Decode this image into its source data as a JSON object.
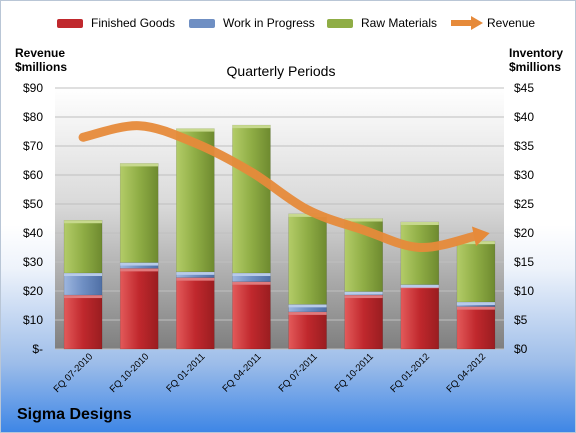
{
  "chart_data": {
    "type": "bar",
    "stacked": true,
    "categories": [
      "FQ 07-2010",
      "FQ 10-2010",
      "FQ 01-2011",
      "FQ 04-2011",
      "FQ 07-2011",
      "FQ 10-2011",
      "FQ 01-2012",
      "FQ 04-2012"
    ],
    "series": [
      {
        "name": "Finished Goods",
        "axis": "right",
        "color": "#c0282d",
        "values": [
          9.3,
          13.9,
          12.3,
          11.6,
          6.4,
          9.3,
          11.0,
          7.3
        ]
      },
      {
        "name": "Work in Progress",
        "axis": "right",
        "color": "#6f8fc3",
        "values": [
          3.8,
          1.0,
          1.0,
          1.5,
          1.3,
          0.6,
          0.1,
          0.8
        ]
      },
      {
        "name": "Raw Materials",
        "axis": "right",
        "color": "#8fad45",
        "values": [
          9.1,
          17.1,
          24.7,
          25.5,
          15.6,
          12.6,
          10.8,
          10.5
        ]
      },
      {
        "name": "Revenue",
        "type": "line",
        "axis": "left",
        "color": "#e68a3a",
        "values": [
          73,
          77,
          71,
          61,
          48,
          41,
          35,
          39
        ]
      }
    ],
    "title": "Quarterly Periods",
    "ylabel_left": "Revenue $millions",
    "ylabel_right": "Inventory $millions",
    "ylim_left": [
      0,
      90
    ],
    "ylim_right": [
      0,
      45
    ],
    "yticks_left": [
      "$-",
      "$10",
      "$20",
      "$30",
      "$40",
      "$50",
      "$60",
      "$70",
      "$80",
      "$90"
    ],
    "yticks_right": [
      "$0",
      "$5",
      "$10",
      "$15",
      "$20",
      "$25",
      "$30",
      "$35",
      "$40",
      "$45"
    ],
    "grid": true,
    "legend_position": "top"
  },
  "legend": [
    {
      "label": "Finished Goods",
      "color": "#c0282d"
    },
    {
      "label": "Work in Progress",
      "color": "#6f8fc3"
    },
    {
      "label": "Raw Materials",
      "color": "#8fad45"
    },
    {
      "label": "Revenue",
      "color": "#e68a3a"
    }
  ],
  "axis_titles": {
    "left": [
      "Revenue",
      "$millions"
    ],
    "right": [
      "Inventory",
      "$millions"
    ]
  },
  "company": "Sigma Designs"
}
